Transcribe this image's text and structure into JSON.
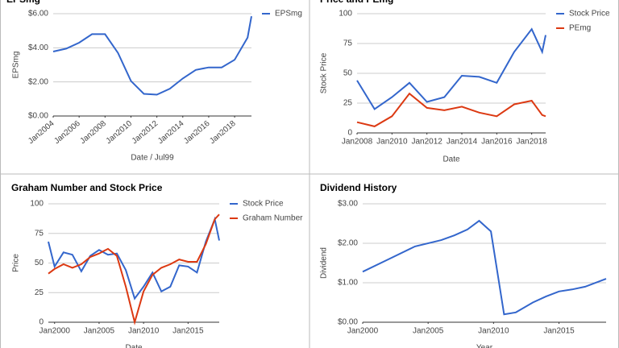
{
  "chart_data": [
    {
      "type": "line",
      "title": "EPSmg",
      "x_label": "Date / Jul99",
      "y_label": "EPSmg",
      "x": [
        2004,
        2005,
        2006,
        2007,
        2008,
        2009,
        2010,
        2011,
        2012,
        2013,
        2014,
        2015,
        2016,
        2017,
        2018,
        2019,
        2019.3
      ],
      "xlim": [
        2004,
        2019.3
      ],
      "xticks": [
        {
          "value": 2004,
          "label": "Jan2004"
        },
        {
          "value": 2006,
          "label": "Jan2006"
        },
        {
          "value": 2008,
          "label": "Jan2008"
        },
        {
          "value": 2010,
          "label": "Jan2010"
        },
        {
          "value": 2012,
          "label": "Jan2012"
        },
        {
          "value": 2014,
          "label": "Jan2014"
        },
        {
          "value": 2016,
          "label": "Jan2016"
        },
        {
          "value": 2018,
          "label": "Jan2018"
        }
      ],
      "ylim": [
        0,
        6
      ],
      "yticks": [
        {
          "value": 0,
          "label": "$0.00"
        },
        {
          "value": 2,
          "label": "$2.00"
        },
        {
          "value": 4,
          "label": "$4.00"
        },
        {
          "value": 6,
          "label": "$6.00"
        }
      ],
      "series": [
        {
          "name": "EPSmg",
          "color": "#3366cc",
          "values": [
            3.78,
            3.95,
            4.3,
            4.8,
            4.8,
            3.7,
            2.05,
            1.3,
            1.25,
            1.6,
            2.2,
            2.7,
            2.85,
            2.85,
            3.3,
            4.6,
            5.85
          ]
        }
      ],
      "grid": true,
      "legend": "right"
    },
    {
      "type": "line",
      "title": "Price and PEmg",
      "x_label": "Date",
      "y_label": "Stock Price",
      "x": [
        2008,
        2009,
        2010,
        2011,
        2012,
        2013,
        2014,
        2015,
        2016,
        2017,
        2018,
        2018.6,
        2018.8
      ],
      "xlim": [
        2008,
        2018.8
      ],
      "xticks": [
        {
          "value": 2008,
          "label": "Jan2008"
        },
        {
          "value": 2010,
          "label": "Jan2010"
        },
        {
          "value": 2012,
          "label": "Jan2012"
        },
        {
          "value": 2014,
          "label": "Jan2014"
        },
        {
          "value": 2016,
          "label": "Jan2016"
        },
        {
          "value": 2018,
          "label": "Jan2018"
        }
      ],
      "ylim": [
        0,
        100
      ],
      "yticks": [
        0,
        25,
        50,
        75,
        100
      ],
      "series": [
        {
          "name": "Stock Price",
          "color": "#3366cc",
          "values": [
            44,
            20,
            30,
            42,
            26,
            30,
            48,
            47,
            42,
            68,
            87,
            68,
            82
          ]
        },
        {
          "name": "PEmg",
          "color": "#dc3912",
          "values": [
            9,
            5.5,
            14,
            33,
            21,
            19,
            22,
            17,
            14,
            24,
            27,
            15,
            14
          ]
        }
      ],
      "grid": true,
      "legend": "right"
    },
    {
      "type": "line",
      "title": "Graham Number and Stock Price",
      "x_label": "Date",
      "y_label": "Price",
      "x": [
        1999.3,
        2000,
        2001,
        2002,
        2003,
        2004,
        2005,
        2006,
        2007,
        2008,
        2009,
        2010,
        2011,
        2012,
        2013,
        2014,
        2015,
        2016,
        2017,
        2018,
        2018.5
      ],
      "xlim": [
        1999.3,
        2018.5
      ],
      "xticks": [
        {
          "value": 2000,
          "label": "Jan2000"
        },
        {
          "value": 2005,
          "label": "Jan2005"
        },
        {
          "value": 2010,
          "label": "Jan2010"
        },
        {
          "value": 2015,
          "label": "Jan2015"
        }
      ],
      "ylim": [
        0,
        100
      ],
      "yticks": [
        0,
        25,
        50,
        75,
        100
      ],
      "series": [
        {
          "name": "Stock Price",
          "color": "#3366cc",
          "values": [
            68,
            47,
            59,
            57,
            43,
            56,
            61,
            57,
            58,
            44,
            20,
            30,
            42,
            26,
            30,
            48,
            47,
            42,
            68,
            87,
            69
          ]
        },
        {
          "name": "Graham Number",
          "color": "#dc3912",
          "values": [
            41,
            45,
            49,
            46,
            49,
            55,
            58,
            62,
            56,
            30,
            0,
            26,
            40,
            46,
            49,
            53,
            51,
            51,
            66,
            87,
            91
          ]
        }
      ],
      "grid": true,
      "legend": "right"
    },
    {
      "type": "line",
      "title": "Dividend History",
      "x_label": "Year",
      "y_label": "Dividend",
      "x": [
        2000,
        2002,
        2004,
        2006,
        2007,
        2008,
        2008.9,
        2009.8,
        2010.8,
        2011.7,
        2013,
        2014,
        2015,
        2016,
        2017,
        2018.6
      ],
      "xlim": [
        2000,
        2018.6
      ],
      "xticks": [
        {
          "value": 2000,
          "label": "Jan2000"
        },
        {
          "value": 2005,
          "label": "Jan2005"
        },
        {
          "value": 2010,
          "label": "Jan2010"
        },
        {
          "value": 2015,
          "label": "Jan2015"
        }
      ],
      "ylim": [
        0,
        3
      ],
      "yticks": [
        {
          "value": 0,
          "label": "$0.00"
        },
        {
          "value": 1,
          "label": "$1.00"
        },
        {
          "value": 2,
          "label": "$2.00"
        },
        {
          "value": 3,
          "label": "$3.00"
        }
      ],
      "series": [
        {
          "color": "#3366cc",
          "values": [
            1.28,
            1.6,
            1.92,
            2.08,
            2.2,
            2.35,
            2.57,
            2.3,
            0.2,
            0.25,
            0.5,
            0.65,
            0.78,
            0.83,
            0.9,
            1.1
          ]
        }
      ],
      "grid": true
    }
  ]
}
